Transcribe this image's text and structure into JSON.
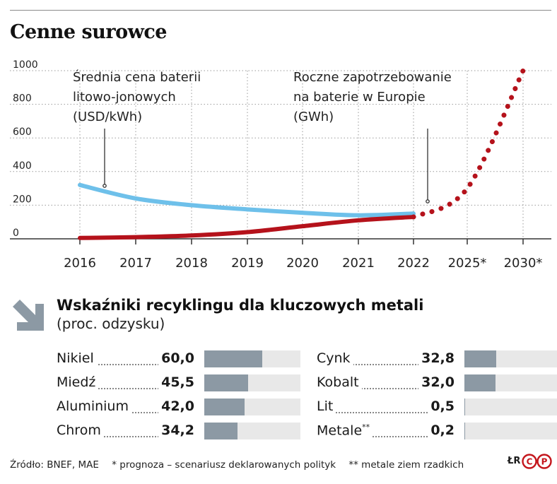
{
  "title": "Cenne surowce",
  "chart_data": {
    "type": "line",
    "x_labels": [
      "2016",
      "2017",
      "2018",
      "2019",
      "2020",
      "2021",
      "2022",
      "2025*",
      "2030*"
    ],
    "ylim": [
      0,
      1000
    ],
    "y_ticks": [
      "0",
      "200",
      "400",
      "600",
      "800",
      "1000"
    ],
    "grid": true,
    "annotations": {
      "price": [
        "Średnia cena baterii",
        "litowo-jonowych",
        "(USD/kWh)"
      ],
      "demand": [
        "Roczne zapotrzebowanie",
        "na baterie w Europie",
        "(GWh)"
      ]
    },
    "series": [
      {
        "color": "#6ec0ea",
        "x": [
          "2016",
          "2017",
          "2018",
          "2019",
          "2020",
          "2021",
          "2022"
        ],
        "values": [
          320,
          240,
          200,
          175,
          155,
          140,
          150
        ]
      },
      {
        "color": "#b5121b",
        "x": [
          "2016",
          "2017",
          "2018",
          "2019",
          "2020",
          "2021",
          "2022",
          "2025*",
          "2030*"
        ],
        "values": [
          5,
          10,
          20,
          40,
          75,
          110,
          130,
          300,
          1000
        ]
      }
    ]
  },
  "recycling": {
    "title": "Wskaźniki recyklingu dla kluczowych metali",
    "subtitle": "(proc. odzysku)",
    "icon": "arrow-down-right-icon",
    "bar_color": "#8c99a4",
    "track_color": "#e8e8e8",
    "left": [
      {
        "name": "Nikiel",
        "value": "60,0",
        "pct": 60.0
      },
      {
        "name": "Miedź",
        "value": "45,5",
        "pct": 45.5
      },
      {
        "name": "Aluminium",
        "value": "42,0",
        "pct": 42.0
      },
      {
        "name": "Chrom",
        "value": "34,2",
        "pct": 34.2
      }
    ],
    "right": [
      {
        "name": "Cynk",
        "value": "32,8",
        "pct": 32.8
      },
      {
        "name": "Kobalt",
        "value": "32,0",
        "pct": 32.0
      },
      {
        "name": "Lit",
        "value": "0,5",
        "pct": 0.5
      },
      {
        "name": "Metale",
        "mark": "**",
        "value": "0,2",
        "pct": 0.2
      }
    ]
  },
  "footer": {
    "source": "Źródło: BNEF, MAE",
    "note1": "* prognoza – scenariusz deklarowanych polityk",
    "note2": "** metale ziem rzadkich",
    "author": "ŁR",
    "logo": "CP"
  }
}
